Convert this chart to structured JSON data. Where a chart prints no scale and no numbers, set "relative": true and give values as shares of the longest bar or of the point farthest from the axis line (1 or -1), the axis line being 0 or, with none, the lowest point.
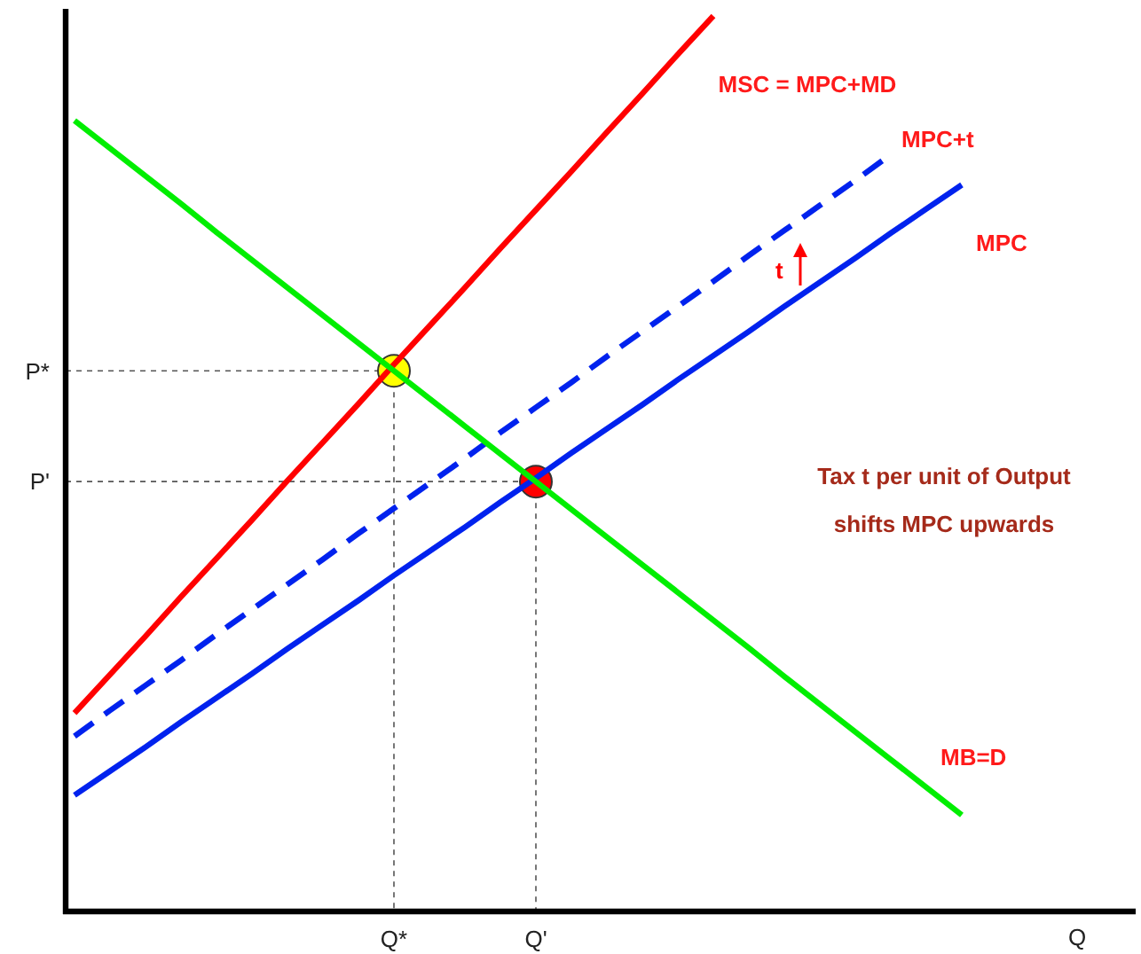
{
  "chart_data": {
    "type": "line",
    "relative": true,
    "xlabel": "Q",
    "legend": false,
    "categories": [
      null,
      null,
      null,
      null,
      null,
      null,
      null,
      null,
      null,
      "Q*",
      null,
      null,
      null,
      "Q'",
      null,
      null,
      null,
      null,
      null,
      null,
      null,
      null,
      null,
      null,
      null,
      null,
      null,
      null,
      null,
      null
    ],
    "series": [
      {
        "name": "MSC = MPC+MD",
        "color": "#ff0000",
        "values": [
          0.22,
          0.263,
          0.306,
          0.35,
          0.393,
          0.436,
          0.48,
          0.523,
          0.566,
          0.61,
          0.653,
          0.696,
          0.74,
          0.783,
          0.826,
          0.87,
          0.913,
          0.957,
          1.0,
          null,
          null,
          null,
          null,
          null,
          null,
          null,
          null,
          null,
          null,
          null
        ]
      },
      {
        "name": "MPC+t",
        "color": "#0022ee",
        "line_style": "dashed",
        "values": [
          0.194,
          0.223,
          0.251,
          0.279,
          0.308,
          0.336,
          0.364,
          0.392,
          0.421,
          0.449,
          0.477,
          0.505,
          0.534,
          0.562,
          0.59,
          0.619,
          0.647,
          0.675,
          0.703,
          0.732,
          0.76,
          0.788,
          0.816,
          0.845,
          null,
          null,
          null,
          null,
          null,
          null
        ]
      },
      {
        "name": "MPC",
        "color": "#0022ee",
        "values": [
          0.128,
          0.155,
          0.182,
          0.21,
          0.237,
          0.264,
          0.292,
          0.319,
          0.346,
          0.374,
          0.401,
          0.428,
          0.456,
          0.483,
          0.511,
          0.538,
          0.565,
          0.593,
          0.62,
          0.647,
          0.675,
          0.702,
          0.729,
          0.757,
          0.784,
          0.811,
          null,
          null,
          null,
          null
        ]
      },
      {
        "name": "MB=D",
        "color": "#00ee00",
        "values": [
          0.883,
          0.852,
          0.821,
          0.79,
          0.758,
          0.727,
          0.696,
          0.665,
          0.634,
          0.603,
          0.572,
          0.541,
          0.51,
          0.479,
          0.448,
          0.417,
          0.386,
          0.355,
          0.324,
          0.293,
          0.261,
          0.23,
          0.199,
          0.168,
          0.137,
          0.106,
          null,
          null,
          null,
          null
        ]
      },
      {
        "type": "scatter",
        "marker": "circle",
        "color": "#ffff00",
        "values": [
          null,
          null,
          null,
          null,
          null,
          null,
          null,
          null,
          null,
          0.603,
          null,
          null,
          null,
          null,
          null,
          null,
          null,
          null,
          null,
          null,
          null,
          null,
          null,
          null,
          null,
          null,
          null,
          null,
          null,
          null
        ]
      },
      {
        "type": "scatter",
        "marker": "circle",
        "color": "#ff0000",
        "values": [
          null,
          null,
          null,
          null,
          null,
          null,
          null,
          null,
          null,
          null,
          null,
          null,
          null,
          0.479,
          null,
          null,
          null,
          null,
          null,
          null,
          null,
          null,
          null,
          null,
          null,
          null,
          null,
          null,
          null,
          null
        ]
      }
    ],
    "annotations": [
      "t",
      "Tax t per unit of Output",
      "shifts MPC upwards",
      "P*",
      "P'"
    ]
  }
}
